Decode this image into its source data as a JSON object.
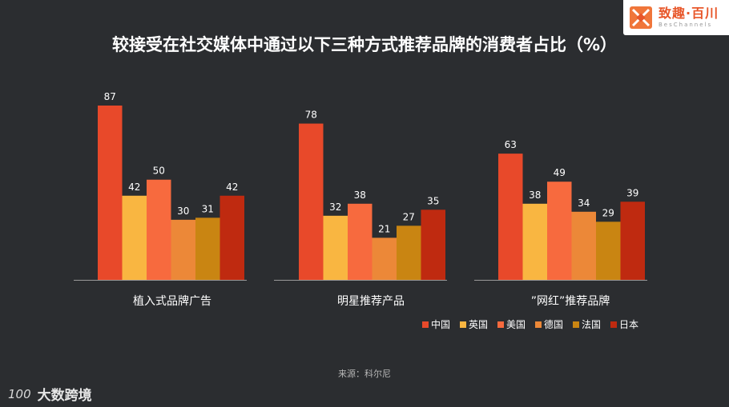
{
  "logo": {
    "cn": "致趣·百川",
    "en": "BesChannels"
  },
  "footer": {
    "mark": "100",
    "text": "大数跨境"
  },
  "source": "来源：科尔尼",
  "chart_data": {
    "type": "bar",
    "title": "较接受在社交媒体中通过以下三种方式推荐品牌的消费者占比（%）",
    "categories": [
      "植入式品牌广告",
      "明星推荐产品",
      "”网红”推荐品牌"
    ],
    "series": [
      {
        "name": "中国",
        "color": "#e8492a",
        "values": [
          87,
          78,
          63
        ]
      },
      {
        "name": "英国",
        "color": "#f9b641",
        "values": [
          42,
          32,
          38
        ]
      },
      {
        "name": "美国",
        "color": "#f76a3e",
        "values": [
          50,
          38,
          49
        ]
      },
      {
        "name": "德国",
        "color": "#ec8838",
        "values": [
          30,
          21,
          34
        ]
      },
      {
        "name": "法国",
        "color": "#c98512",
        "values": [
          31,
          27,
          29
        ]
      },
      {
        "name": "日本",
        "color": "#bf2a10",
        "values": [
          42,
          35,
          39
        ]
      }
    ],
    "ylim": [
      0,
      100
    ],
    "grid": false,
    "legend": "bottom-right",
    "data_labels": true
  }
}
